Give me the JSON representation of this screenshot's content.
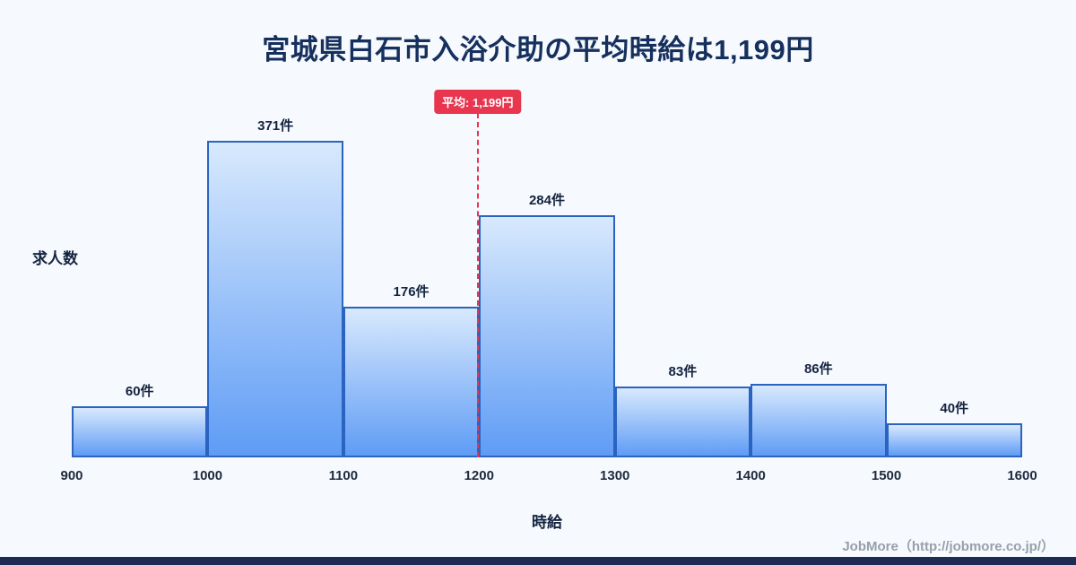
{
  "title": "宮城県白石市入浴介助の平均時給は1,199円",
  "chart_data": {
    "type": "bar",
    "subtype": "histogram",
    "title": "宮城県白石市入浴介助の平均時給は1,199円",
    "bin_edges": [
      900,
      1000,
      1100,
      1200,
      1300,
      1400,
      1500,
      1600
    ],
    "x_tick_labels": [
      "900",
      "1000",
      "1100",
      "1200",
      "1300",
      "1400",
      "1500",
      "1600"
    ],
    "values": [
      60,
      371,
      176,
      284,
      83,
      86,
      40
    ],
    "bar_labels": [
      "60件",
      "371件",
      "176件",
      "284件",
      "83件",
      "86件",
      "40件"
    ],
    "xlabel": "時給",
    "ylabel": "求人数",
    "xlim": [
      900,
      1600
    ],
    "ylim": [
      0,
      420
    ],
    "grid": false,
    "legend": "none",
    "average": {
      "value": 1199,
      "label": "平均: 1,199円"
    },
    "colors": {
      "bar_top": "#d8e9fd",
      "bar_bottom": "#5f9cf5",
      "bar_border": "#2a64c0",
      "average_red": "#e8364f",
      "title_navy": "#16305e",
      "bottom_strip": "#1e2b52"
    }
  },
  "footer": {
    "credit": "JobMore（http://jobmore.co.jp/）"
  }
}
